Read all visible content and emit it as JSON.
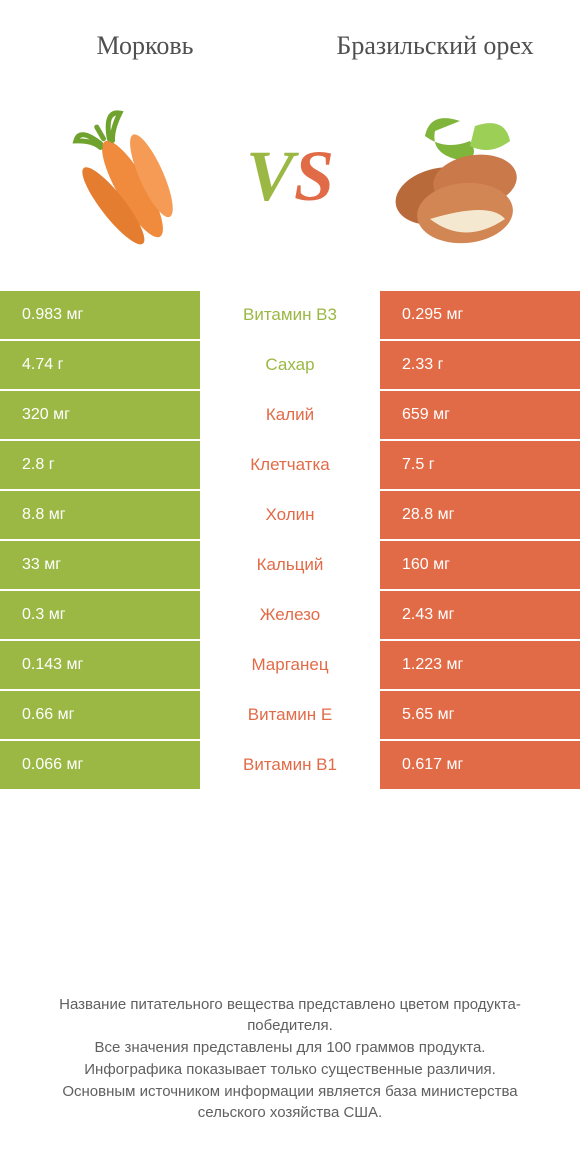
{
  "colors": {
    "left": "#9bb844",
    "right": "#e26b47",
    "text": "#606060",
    "white": "#ffffff"
  },
  "header": {
    "left": "Морковь",
    "right": "Бразильский орех"
  },
  "vs": {
    "v": "V",
    "s": "S"
  },
  "rows": [
    {
      "left": "0.983 мг",
      "label": "Витамин B3",
      "right": "0.295 мг",
      "winner": "left"
    },
    {
      "left": "4.74 г",
      "label": "Сахар",
      "right": "2.33 г",
      "winner": "left"
    },
    {
      "left": "320 мг",
      "label": "Калий",
      "right": "659 мг",
      "winner": "right"
    },
    {
      "left": "2.8 г",
      "label": "Клетчатка",
      "right": "7.5 г",
      "winner": "right"
    },
    {
      "left": "8.8 мг",
      "label": "Холин",
      "right": "28.8 мг",
      "winner": "right"
    },
    {
      "left": "33 мг",
      "label": "Кальций",
      "right": "160 мг",
      "winner": "right"
    },
    {
      "left": "0.3 мг",
      "label": "Железо",
      "right": "2.43 мг",
      "winner": "right"
    },
    {
      "left": "0.143 мг",
      "label": "Марганец",
      "right": "1.223 мг",
      "winner": "right"
    },
    {
      "left": "0.66 мг",
      "label": "Витамин E",
      "right": "5.65 мг",
      "winner": "right"
    },
    {
      "left": "0.066 мг",
      "label": "Витамин B1",
      "right": "0.617 мг",
      "winner": "right"
    }
  ],
  "footer": {
    "lines": [
      "Название питательного вещества представлено цветом продукта-победителя.",
      "Все значения представлены для 100 граммов продукта.",
      "Инфографика показывает только существенные различия.",
      "Основным источником информации является база министерства сельского хозяйства США."
    ]
  }
}
